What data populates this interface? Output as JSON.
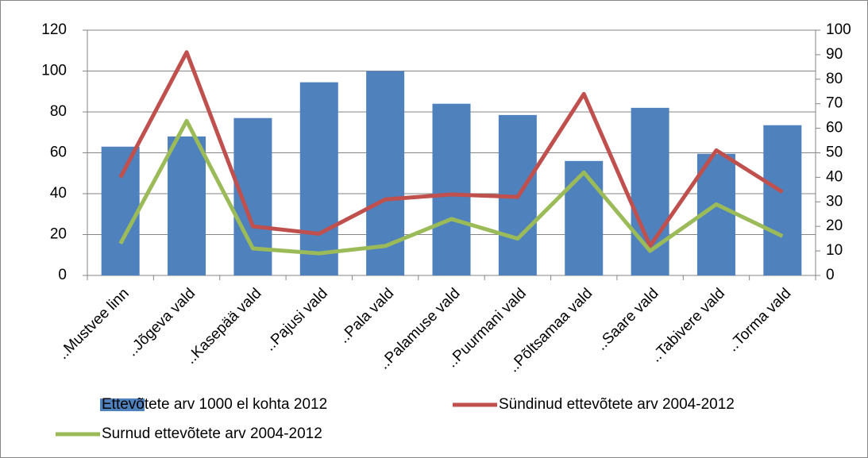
{
  "chart_data": {
    "type": "bar",
    "categories": [
      "..Mustvee linn",
      "..Jõgeva vald",
      "..Kasepää vald",
      "..Pajusi vald",
      "..Pala vald",
      "..Palamuse vald",
      "..Puurmani vald",
      "..Põltsamaa vald",
      "..Saare vald",
      "..Tabivere vald",
      "..Torma vald"
    ],
    "series": [
      {
        "name": "Ettevõtete arv 1000 el kohta 2012",
        "type": "bar",
        "color": "#4f81bd",
        "values": [
          63,
          68,
          77,
          94.5,
          100,
          84,
          78.5,
          56,
          82,
          59.5,
          73.5
        ]
      },
      {
        "name": "Sündinud ettevõtete arv 2004-2012",
        "type": "line",
        "axis": "y2",
        "color": "#c0504d",
        "values": [
          40,
          91,
          20,
          17,
          31,
          33,
          32,
          74,
          12,
          51,
          34
        ]
      },
      {
        "name": "Surnud ettevõtete arv 2004-2012",
        "type": "line",
        "axis": "y2",
        "color": "#9bbb59",
        "values": [
          13,
          63,
          11,
          9,
          12,
          23,
          15,
          42,
          10,
          29,
          16
        ]
      }
    ],
    "ylim": [
      0,
      120
    ],
    "yticks": [
      0,
      20,
      40,
      60,
      80,
      100,
      120
    ],
    "y2lim": [
      0,
      100
    ],
    "y2ticks": [
      0,
      10,
      20,
      30,
      40,
      50,
      60,
      70,
      80,
      90,
      100
    ],
    "grid": true,
    "legend": "bottom"
  }
}
